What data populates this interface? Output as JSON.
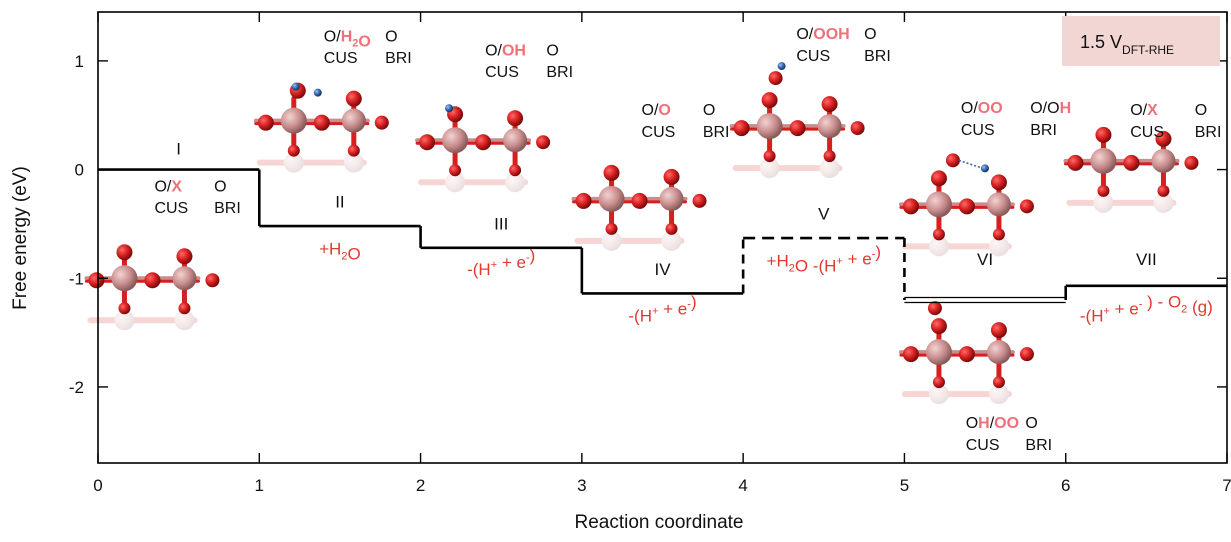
{
  "chart_data": {
    "type": "line",
    "xlabel": "Reaction coordinate",
    "ylabel": "Free energy (eV)",
    "xlim": [
      0,
      7
    ],
    "ylim": [
      -2.7,
      1.45
    ],
    "xticks": [
      "0",
      "1",
      "2",
      "3",
      "4",
      "5",
      "6",
      "7"
    ],
    "yticks": [
      "1",
      "0",
      "-1",
      "-2"
    ],
    "badge": {
      "main": "1.5 V",
      "sub": "DFT-RHE"
    },
    "series": [
      {
        "style": "solid",
        "steps": [
          {
            "x0": 0,
            "x1": 1,
            "y": 0.0
          },
          {
            "x0": 1,
            "x1": 2,
            "y": -0.52
          },
          {
            "x0": 2,
            "x1": 3,
            "y": -0.72
          },
          {
            "x0": 3,
            "x1": 4,
            "y": -1.14
          }
        ]
      },
      {
        "style": "dashed",
        "steps": [
          {
            "x0": 4,
            "x1": 5,
            "y": -0.63
          }
        ]
      },
      {
        "style": "double",
        "steps": [
          {
            "x0": 5,
            "x1": 6,
            "y": -1.2
          }
        ]
      },
      {
        "style": "solid",
        "steps": [
          {
            "x0": 6,
            "x1": 7,
            "y": -1.07
          }
        ]
      }
    ],
    "state_labels": [
      {
        "text": "I",
        "x": 0.5,
        "y": 0.14
      },
      {
        "text": "II",
        "x": 1.5,
        "y": -0.35
      },
      {
        "text": "III",
        "x": 2.5,
        "y": -0.55
      },
      {
        "text": "IV",
        "x": 3.5,
        "y": -0.97
      },
      {
        "text": "V",
        "x": 4.5,
        "y": -0.46
      },
      {
        "text": "VI",
        "x": 5.5,
        "y": -0.88
      },
      {
        "text": "VII",
        "x": 6.5,
        "y": -0.88
      }
    ],
    "reaction_labels": [
      {
        "x": 1.5,
        "y": -0.78,
        "parts": [
          [
            "+H",
            ""
          ],
          [
            "2",
            "sub"
          ],
          [
            "O",
            ""
          ]
        ]
      },
      {
        "x": 2.5,
        "y": -0.97,
        "parts": [
          [
            "-(H",
            ""
          ],
          [
            "+",
            "sup"
          ],
          [
            " + e",
            ""
          ],
          [
            "-",
            "sup"
          ],
          [
            ")",
            ""
          ]
        ]
      },
      {
        "x": 3.5,
        "y": -1.4,
        "parts": [
          [
            "-(H",
            ""
          ],
          [
            "+",
            "sup"
          ],
          [
            " + e",
            ""
          ],
          [
            "-",
            "sup"
          ],
          [
            ")",
            ""
          ]
        ]
      },
      {
        "x": 4.5,
        "y": -0.89,
        "parts": [
          [
            "+H",
            ""
          ],
          [
            "2",
            "sub"
          ],
          [
            "O -(H",
            ""
          ],
          [
            "+",
            "sup"
          ],
          [
            " + e",
            ""
          ],
          [
            "-",
            "sup"
          ],
          [
            ")",
            ""
          ]
        ]
      },
      {
        "x": 6.5,
        "y": -1.4,
        "parts": [
          [
            "-(H",
            ""
          ],
          [
            "+",
            "sup"
          ],
          [
            " + e",
            ""
          ],
          [
            "-",
            "sup"
          ],
          [
            " ) - O",
            ""
          ],
          [
            "2",
            "sub"
          ],
          [
            " (g)",
            ""
          ]
        ]
      }
    ],
    "site_labels": [
      {
        "x": 0.35,
        "y": -0.2,
        "parts": [
          [
            "O/",
            ""
          ],
          [
            "X",
            "red"
          ]
        ]
      },
      {
        "x": 0.35,
        "y": -0.4,
        "parts": [
          [
            "CUS",
            ""
          ]
        ]
      },
      {
        "x": 0.72,
        "y": -0.2,
        "parts": [
          [
            "O",
            ""
          ]
        ]
      },
      {
        "x": 0.72,
        "y": -0.4,
        "parts": [
          [
            "BRI",
            ""
          ]
        ]
      },
      {
        "x": 1.4,
        "y": 1.18,
        "parts": [
          [
            "O/",
            ""
          ],
          [
            "H",
            "red"
          ],
          [
            "2",
            "redsub"
          ],
          [
            "O",
            "red"
          ]
        ]
      },
      {
        "x": 1.4,
        "y": 0.98,
        "parts": [
          [
            "CUS",
            ""
          ]
        ]
      },
      {
        "x": 1.78,
        "y": 1.18,
        "parts": [
          [
            "O",
            ""
          ]
        ]
      },
      {
        "x": 1.78,
        "y": 0.98,
        "parts": [
          [
            "BRI",
            ""
          ]
        ]
      },
      {
        "x": 2.4,
        "y": 1.05,
        "parts": [
          [
            "O/",
            ""
          ],
          [
            "OH",
            "red"
          ]
        ]
      },
      {
        "x": 2.4,
        "y": 0.85,
        "parts": [
          [
            "CUS",
            ""
          ]
        ]
      },
      {
        "x": 2.78,
        "y": 1.05,
        "parts": [
          [
            "O",
            ""
          ]
        ]
      },
      {
        "x": 2.78,
        "y": 0.85,
        "parts": [
          [
            "BRI",
            ""
          ]
        ]
      },
      {
        "x": 3.37,
        "y": 0.5,
        "parts": [
          [
            "O/",
            ""
          ],
          [
            "O",
            "red"
          ]
        ]
      },
      {
        "x": 3.37,
        "y": 0.3,
        "parts": [
          [
            "CUS",
            ""
          ]
        ]
      },
      {
        "x": 3.75,
        "y": 0.5,
        "parts": [
          [
            "O",
            ""
          ]
        ]
      },
      {
        "x": 3.75,
        "y": 0.3,
        "parts": [
          [
            "BRI",
            ""
          ]
        ]
      },
      {
        "x": 4.33,
        "y": 1.2,
        "parts": [
          [
            "O/",
            ""
          ],
          [
            "OOH",
            "red"
          ]
        ]
      },
      {
        "x": 4.33,
        "y": 1.0,
        "parts": [
          [
            "CUS",
            ""
          ]
        ]
      },
      {
        "x": 4.75,
        "y": 1.2,
        "parts": [
          [
            "O",
            ""
          ]
        ]
      },
      {
        "x": 4.75,
        "y": 1.0,
        "parts": [
          [
            "BRI",
            ""
          ]
        ]
      },
      {
        "x": 5.35,
        "y": 0.52,
        "parts": [
          [
            "O/",
            ""
          ],
          [
            "OO",
            "red"
          ]
        ]
      },
      {
        "x": 5.35,
        "y": 0.32,
        "parts": [
          [
            "CUS",
            ""
          ]
        ]
      },
      {
        "x": 5.78,
        "y": 0.52,
        "parts": [
          [
            "O/O",
            ""
          ],
          [
            "H",
            "red"
          ]
        ]
      },
      {
        "x": 5.78,
        "y": 0.32,
        "parts": [
          [
            "BRI",
            ""
          ]
        ]
      },
      {
        "x": 6.4,
        "y": 0.5,
        "parts": [
          [
            "O/",
            ""
          ],
          [
            "X",
            "red"
          ]
        ]
      },
      {
        "x": 6.4,
        "y": 0.3,
        "parts": [
          [
            "CUS",
            ""
          ]
        ]
      },
      {
        "x": 6.8,
        "y": 0.5,
        "parts": [
          [
            "O",
            ""
          ]
        ]
      },
      {
        "x": 6.8,
        "y": 0.3,
        "parts": [
          [
            "BRI",
            ""
          ]
        ]
      },
      {
        "x": 5.38,
        "y": -2.38,
        "parts": [
          [
            "O",
            ""
          ],
          [
            "H",
            "red"
          ],
          [
            "/",
            ""
          ],
          [
            "OO",
            "red"
          ]
        ]
      },
      {
        "x": 5.38,
        "y": -2.58,
        "parts": [
          [
            "CUS",
            ""
          ]
        ]
      },
      {
        "x": 5.75,
        "y": -2.38,
        "parts": [
          [
            "O",
            ""
          ]
        ]
      },
      {
        "x": 5.75,
        "y": -2.58,
        "parts": [
          [
            "BRI",
            ""
          ]
        ]
      }
    ],
    "structures": [
      {
        "x": 0.35,
        "y": -1.0,
        "ads": "X"
      },
      {
        "x": 1.4,
        "y": 0.45,
        "ads": "H2O"
      },
      {
        "x": 2.4,
        "y": 0.27,
        "ads": "OH"
      },
      {
        "x": 3.37,
        "y": -0.27,
        "ads": "O"
      },
      {
        "x": 4.35,
        "y": 0.4,
        "ads": "OOH"
      },
      {
        "x": 5.4,
        "y": -0.32,
        "ads": "OO"
      },
      {
        "x": 6.42,
        "y": 0.08,
        "ads": "X"
      },
      {
        "x": 5.4,
        "y": -1.68,
        "ads": "OHOO"
      }
    ],
    "colors": {
      "line": "#000000",
      "reaction": "#e03a2e",
      "highlight": "#f0707a",
      "badge": "#f1d6d4",
      "O": "#d61f1f",
      "Ti": "#c88d8d",
      "H": "#2e5fa6"
    }
  }
}
